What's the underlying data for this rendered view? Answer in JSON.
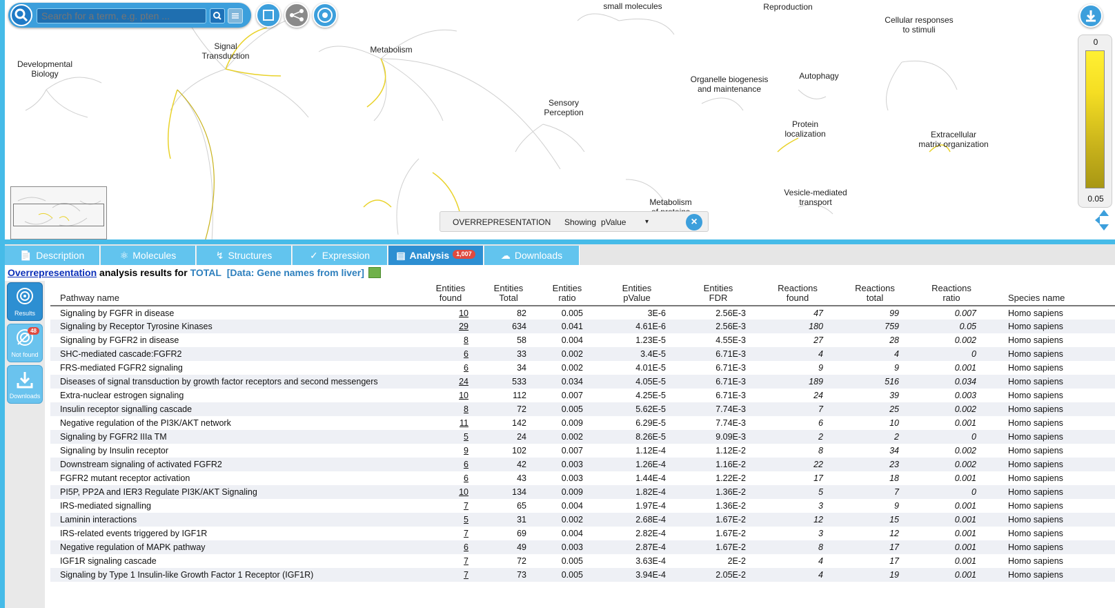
{
  "search": {
    "placeholder": "Search for a term, e.g. pten ..."
  },
  "viewport": {
    "regions": [
      {
        "label": "small molecules"
      },
      {
        "label": "Reproduction"
      },
      {
        "label": "Cellular responses\nto stimuli"
      },
      {
        "label": "Developmental\nBiology"
      },
      {
        "label": "Signal\nTransduction"
      },
      {
        "label": "Metabolism"
      },
      {
        "label": "Organelle biogenesis\nand maintenance"
      },
      {
        "label": "Autophagy"
      },
      {
        "label": "Sensory\nPerception"
      },
      {
        "label": "Protein\nlocalization"
      },
      {
        "label": "Extracellular\nmatrix organization"
      },
      {
        "label": "Vesicle-mediated\ntransport"
      },
      {
        "label": "Metabolism\nof proteins"
      }
    ],
    "legend": {
      "top": "0",
      "bottom": "0.05"
    },
    "analysis_box": {
      "type": "OVERREPRESENTATION",
      "showing_label": "Showing",
      "showing_value": "pValue"
    },
    "icons": [
      "search-icon",
      "fit-icon",
      "hierarchy-icon",
      "network-icon",
      "download-icon"
    ]
  },
  "tabs": [
    {
      "label": "Description",
      "icon": "document-icon"
    },
    {
      "label": "Molecules",
      "icon": "molecule-icon"
    },
    {
      "label": "Structures",
      "icon": "dna-icon"
    },
    {
      "label": "Expression",
      "icon": "expression-icon"
    },
    {
      "label": "Analysis",
      "icon": "chart-icon",
      "badge": "1,007",
      "active": true
    },
    {
      "label": "Downloads",
      "icon": "cloud-icon"
    }
  ],
  "result_header": {
    "link": "Overrepresentation",
    "text": " analysis results for ",
    "total": "TOTAL",
    "data": "[Data: Gene names from liver]"
  },
  "sidebar": {
    "items": [
      {
        "label": "Results",
        "active": true
      },
      {
        "label": "Not found",
        "badge": "48"
      },
      {
        "label": "Downloads"
      }
    ]
  },
  "table": {
    "headers": [
      "Pathway name",
      "Entities\nfound",
      "Entities\nTotal",
      "Entities\nratio",
      "Entities\npValue",
      "Entities\nFDR",
      "Reactions\nfound",
      "Reactions\ntotal",
      "Reactions\nratio",
      "Species name"
    ],
    "rows": [
      [
        "Signaling by FGFR in disease",
        "10",
        "82",
        "0.005",
        "3E-6",
        "2.56E-3",
        "47",
        "99",
        "0.007",
        "Homo sapiens"
      ],
      [
        "Signaling by Receptor Tyrosine Kinases",
        "29",
        "634",
        "0.041",
        "4.61E-6",
        "2.56E-3",
        "180",
        "759",
        "0.05",
        "Homo sapiens"
      ],
      [
        "Signaling by FGFR2 in disease",
        "8",
        "58",
        "0.004",
        "1.23E-5",
        "4.55E-3",
        "27",
        "28",
        "0.002",
        "Homo sapiens"
      ],
      [
        "SHC-mediated cascade:FGFR2",
        "6",
        "33",
        "0.002",
        "3.4E-5",
        "6.71E-3",
        "4",
        "4",
        "0",
        "Homo sapiens"
      ],
      [
        "FRS-mediated FGFR2 signaling",
        "6",
        "34",
        "0.002",
        "4.01E-5",
        "6.71E-3",
        "9",
        "9",
        "0.001",
        "Homo sapiens"
      ],
      [
        "Diseases of signal transduction by growth factor receptors and second messengers",
        "24",
        "533",
        "0.034",
        "4.05E-5",
        "6.71E-3",
        "189",
        "516",
        "0.034",
        "Homo sapiens"
      ],
      [
        "Extra-nuclear estrogen signaling",
        "10",
        "112",
        "0.007",
        "4.25E-5",
        "6.71E-3",
        "24",
        "39",
        "0.003",
        "Homo sapiens"
      ],
      [
        "Insulin receptor signalling cascade",
        "8",
        "72",
        "0.005",
        "5.62E-5",
        "7.74E-3",
        "7",
        "25",
        "0.002",
        "Homo sapiens"
      ],
      [
        "Negative regulation of the PI3K/AKT network",
        "11",
        "142",
        "0.009",
        "6.29E-5",
        "7.74E-3",
        "6",
        "10",
        "0.001",
        "Homo sapiens"
      ],
      [
        "Signaling by FGFR2 IIIa TM",
        "5",
        "24",
        "0.002",
        "8.26E-5",
        "9.09E-3",
        "2",
        "2",
        "0",
        "Homo sapiens"
      ],
      [
        "Signaling by Insulin receptor",
        "9",
        "102",
        "0.007",
        "1.12E-4",
        "1.12E-2",
        "8",
        "34",
        "0.002",
        "Homo sapiens"
      ],
      [
        "Downstream signaling of activated FGFR2",
        "6",
        "42",
        "0.003",
        "1.26E-4",
        "1.16E-2",
        "22",
        "23",
        "0.002",
        "Homo sapiens"
      ],
      [
        "FGFR2 mutant receptor activation",
        "6",
        "43",
        "0.003",
        "1.44E-4",
        "1.22E-2",
        "17",
        "18",
        "0.001",
        "Homo sapiens"
      ],
      [
        "PI5P, PP2A and IER3 Regulate PI3K/AKT Signaling",
        "10",
        "134",
        "0.009",
        "1.82E-4",
        "1.36E-2",
        "5",
        "7",
        "0",
        "Homo sapiens"
      ],
      [
        "IRS-mediated signalling",
        "7",
        "65",
        "0.004",
        "1.97E-4",
        "1.36E-2",
        "3",
        "9",
        "0.001",
        "Homo sapiens"
      ],
      [
        "Laminin interactions",
        "5",
        "31",
        "0.002",
        "2.68E-4",
        "1.67E-2",
        "12",
        "15",
        "0.001",
        "Homo sapiens"
      ],
      [
        "IRS-related events triggered by IGF1R",
        "7",
        "69",
        "0.004",
        "2.82E-4",
        "1.67E-2",
        "3",
        "12",
        "0.001",
        "Homo sapiens"
      ],
      [
        "Negative regulation of MAPK pathway",
        "6",
        "49",
        "0.003",
        "2.87E-4",
        "1.67E-2",
        "8",
        "17",
        "0.001",
        "Homo sapiens"
      ],
      [
        "IGF1R signaling cascade",
        "7",
        "72",
        "0.005",
        "3.63E-4",
        "2E-2",
        "4",
        "17",
        "0.001",
        "Homo sapiens"
      ],
      [
        "Signaling by Type 1 Insulin-like Growth Factor 1 Receptor (IGF1R)",
        "7",
        "73",
        "0.005",
        "3.94E-4",
        "2.05E-2",
        "4",
        "19",
        "0.001",
        "Homo sapiens"
      ]
    ]
  },
  "colors": {
    "accent": "#46bbe8",
    "active_tab": "#2d8fd2",
    "tab": "#62c4ee",
    "highlight": "#f5de23"
  }
}
